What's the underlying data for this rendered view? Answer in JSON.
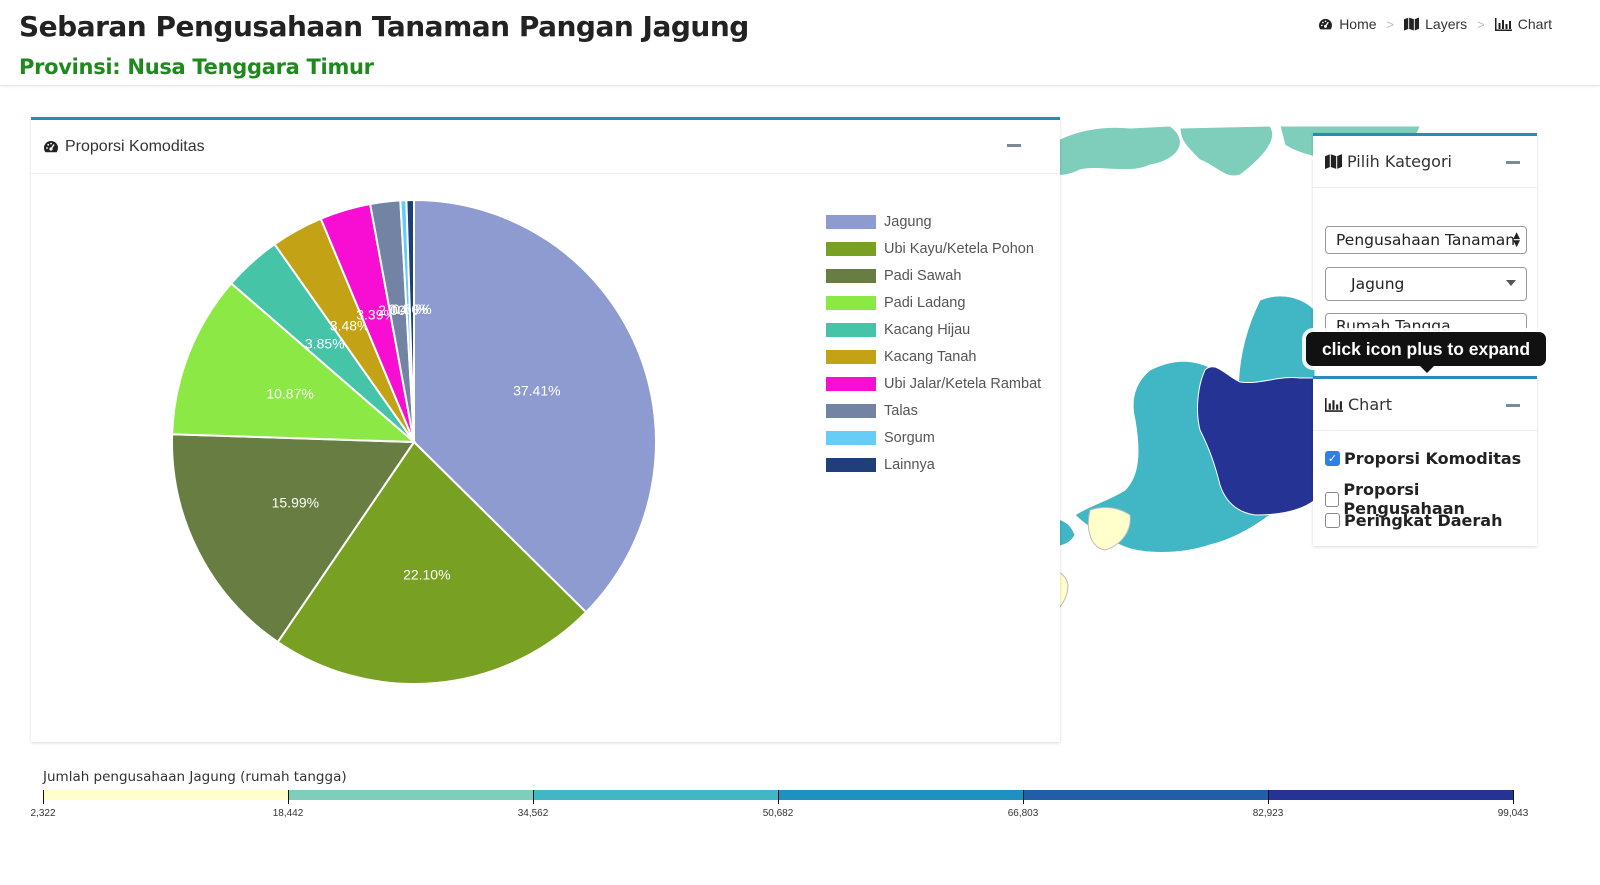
{
  "header": {
    "title": "Sebaran Pengusahaan Tanaman Pangan Jagung",
    "subtitle": "Provinsi: Nusa Tenggara Timur",
    "breadcrumb": [
      {
        "label": "Home",
        "icon": "dashboard-icon"
      },
      {
        "label": "Layers",
        "icon": "map-icon"
      },
      {
        "label": "Chart",
        "icon": "bar-chart-icon"
      }
    ]
  },
  "chart_panel": {
    "title": "Proporsi Komoditas",
    "icon": "dashboard-icon"
  },
  "chart_data": {
    "type": "pie",
    "categories": [
      "Jagung",
      "Ubi Kayu/Ketela Pohon",
      "Padi Sawah",
      "Padi Ladang",
      "Kacang Hijau",
      "Kacang Tanah",
      "Ubi Jalar/Ketela Rambat",
      "Talas",
      "Sorgum",
      "Lainnya"
    ],
    "values": [
      37.41,
      22.1,
      15.99,
      10.87,
      3.85,
      3.48,
      3.39,
      2.0,
      0.4,
      0.5
    ],
    "data_labels": [
      "37.41%",
      "22.10%",
      "15.99%",
      "10.87%",
      "3.85%",
      "3.48%",
      "3.39%",
      "2.00%",
      "0.40%",
      "0.50%"
    ],
    "colors": [
      "#8e9bd0",
      "#78a022",
      "#687d42",
      "#8be845",
      "#46c4a8",
      "#c4a216",
      "#f80ed2",
      "#7283a4",
      "#67ccf6",
      "#1f3f7a"
    ],
    "legend_placement": "right"
  },
  "kategori_panel": {
    "title": "Pilih Kategori",
    "select_1": "Pengusahaan Tanaman",
    "select_2": "Jagung",
    "select_3": "Rumah Tangga"
  },
  "tooltip": "click icon plus to expand",
  "chart_options_panel": {
    "title": "Chart",
    "options": [
      {
        "label": "Proporsi Komoditas",
        "checked": true
      },
      {
        "label": "Proporsi Pengusahaan",
        "checked": false
      },
      {
        "label": "Peringkat Daerah",
        "checked": false
      }
    ]
  },
  "color_scale": {
    "title": "Jumlah pengusahaan Jagung (rumah tangga)",
    "ticks": [
      "2,322",
      "18,442",
      "34,562",
      "50,682",
      "66,803",
      "82,923",
      "99,043"
    ],
    "colors": [
      "#ffffcc",
      "#7fcdbb",
      "#41b6c4",
      "#1d91c0",
      "#225ea8",
      "#253494"
    ]
  }
}
